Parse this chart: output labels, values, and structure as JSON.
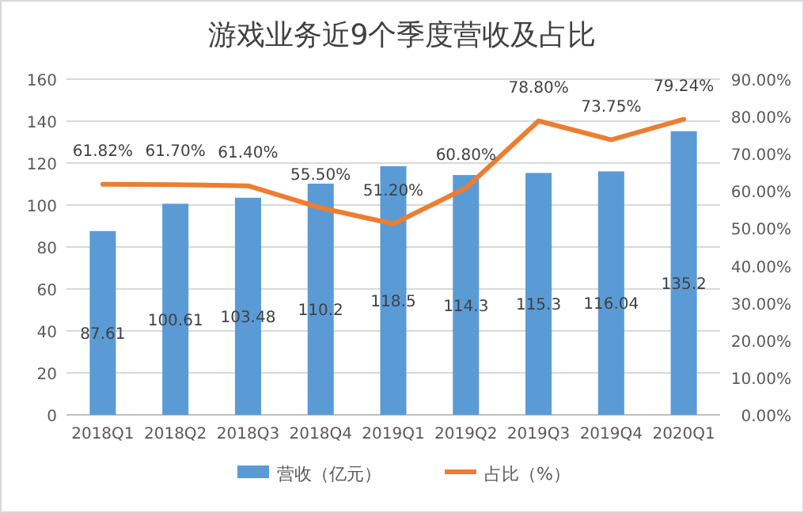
{
  "chart_data": {
    "type": "bar",
    "title": "游戏业务近9个季度营收及占比",
    "categories": [
      "2018Q1",
      "2018Q2",
      "2018Q3",
      "2018Q4",
      "2019Q1",
      "2019Q2",
      "2019Q3",
      "2019Q4",
      "2020Q1"
    ],
    "series": [
      {
        "name": "营收（亿元）",
        "color": "#5b9bd5",
        "values": [
          87.61,
          100.61,
          103.48,
          110.2,
          118.5,
          114.3,
          115.3,
          116.04,
          135.2
        ],
        "value_labels": [
          "87.61",
          "100.61",
          "103.48",
          "110.2",
          "118.5",
          "114.3",
          "115.3",
          "116.04",
          "135.2"
        ]
      },
      {
        "name": "占比（%）",
        "type": "line",
        "axis": "y2",
        "color": "#ed7d31",
        "values": [
          61.82,
          61.7,
          61.4,
          55.5,
          51.2,
          60.8,
          78.8,
          73.75,
          79.24
        ],
        "value_labels": [
          "61.82%",
          "61.70%",
          "61.40%",
          "55.50%",
          "51.20%",
          "60.80%",
          "78.80%",
          "73.75%",
          "79.24%"
        ]
      }
    ],
    "ylim": [
      0,
      160
    ],
    "yticks": [
      0,
      20,
      40,
      60,
      80,
      100,
      120,
      140,
      160
    ],
    "y2lim": [
      0,
      90
    ],
    "y2ticks": [
      {
        "value": 0,
        "label": "0.00%"
      },
      {
        "value": 10,
        "label": "10.00%"
      },
      {
        "value": 20,
        "label": "20.00%"
      },
      {
        "value": 30,
        "label": "30.00%"
      },
      {
        "value": 40,
        "label": "40.00%"
      },
      {
        "value": 50,
        "label": "50.00%"
      },
      {
        "value": 60,
        "label": "60.00%"
      },
      {
        "value": 70,
        "label": "70.00%"
      },
      {
        "value": 80,
        "label": "80.00%"
      },
      {
        "value": 90,
        "label": "90.00%"
      }
    ],
    "grid": "y",
    "legend": "bottom",
    "marker": "none",
    "line_style": "solid"
  }
}
